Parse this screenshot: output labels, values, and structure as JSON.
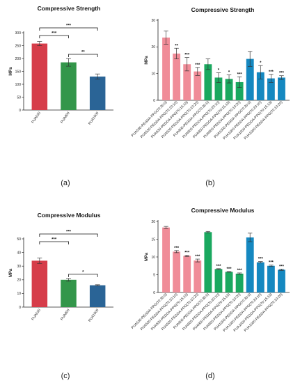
{
  "chart_data": [
    {
      "panel": "a",
      "caption": "(a)",
      "type": "bar",
      "title": "Compressive Strength",
      "ylabel": "MPa",
      "ylim": [
        0,
        300
      ],
      "yticks": [
        0,
        50,
        100,
        150,
        200,
        250,
        300
      ],
      "categories": [
        "PUA530",
        "PUA800",
        "PUA1000"
      ],
      "values": [
        258,
        185,
        130
      ],
      "errors": [
        8,
        15,
        10
      ],
      "colors": [
        "#d63d4a",
        "#33964a",
        "#2a6496"
      ],
      "brackets": [
        {
          "from": 0,
          "to": 2,
          "label": "***",
          "level": 0
        },
        {
          "from": 0,
          "to": 1,
          "label": "***",
          "level": 1
        },
        {
          "from": 1,
          "to": 2,
          "label": "**",
          "level": 2
        }
      ]
    },
    {
      "panel": "b",
      "caption": "(b)",
      "type": "bar",
      "title": "Compressive Strength",
      "ylabel": "MPa",
      "ylim": [
        0,
        30
      ],
      "yticks": [
        0,
        10,
        20,
        30
      ],
      "categories": [
        "PUA530-PEGDA-PPG(70:30:0)",
        "PUA530-PEGDA-PPG(70:20:10)",
        "PUA530-PEGDA-PPG(70:15:15)",
        "PUA530-PEGDA-PPG(70:10:20)",
        "PUA800-PEGDA-PPG(70:30:0)",
        "PUA800-PEGDA-PPG(70:20:10)",
        "PUA800-PEGDA-PPG(70:15:15)",
        "PUA800-PEGDA-PPG(70:10:20)",
        "PUA1000-PEGDA-PPG(70:30:0)",
        "PUA1000-PEGDA-PPG(70:20:10)",
        "PUA1000-PEGDA-PPG(70:15:15)",
        "PUA1000-PEGDA-PPG(70:10:20)"
      ],
      "values": [
        23.5,
        17.5,
        13.5,
        10.8,
        13.5,
        8.5,
        8.0,
        6.8,
        15.5,
        10.5,
        8.2,
        8.5
      ],
      "errors": [
        2.5,
        2.0,
        2.5,
        1.5,
        2.0,
        1.8,
        1.5,
        2.0,
        2.8,
        2.5,
        1.5,
        0.7
      ],
      "labels": [
        "",
        "**",
        "***",
        "***",
        "",
        "*",
        "*",
        "***",
        "",
        "*",
        "***",
        "***"
      ],
      "colors": [
        "#f08c98",
        "#f08c98",
        "#f08c98",
        "#f08c98",
        "#1aa85f",
        "#1aa85f",
        "#1aa85f",
        "#1aa85f",
        "#1588c0",
        "#1588c0",
        "#1588c0",
        "#1588c0"
      ]
    },
    {
      "panel": "c",
      "caption": "(c)",
      "type": "bar",
      "title": "Compressive Modulus",
      "ylabel": "MPa",
      "ylim": [
        0,
        50
      ],
      "yticks": [
        0,
        10,
        20,
        30,
        40,
        50
      ],
      "categories": [
        "PUA530",
        "PUA800",
        "PUA1000"
      ],
      "values": [
        34,
        20,
        16
      ],
      "errors": [
        2,
        1,
        0.4
      ],
      "colors": [
        "#d63d4a",
        "#33964a",
        "#2a6496"
      ],
      "brackets": [
        {
          "from": 0,
          "to": 2,
          "label": "***",
          "level": 0
        },
        {
          "from": 0,
          "to": 1,
          "label": "***",
          "level": 1
        },
        {
          "from": 1,
          "to": 2,
          "label": "*",
          "level": 2
        }
      ]
    },
    {
      "panel": "d",
      "caption": "(d)",
      "type": "bar",
      "title": "Compressive Modulus",
      "ylabel": "MPa",
      "ylim": [
        0,
        20
      ],
      "yticks": [
        0,
        5,
        10,
        15,
        20
      ],
      "categories": [
        "PUA530-PEGDA-PPG(70:30:0)",
        "PUA530-PEGDA-PPG(70:20:10)",
        "PUA530-PEGDA-PPG(70:15:15)",
        "PUA530-PEGDA-PPG(70:10:20)",
        "PUA800-PEGDA-PPG(70:30:0)",
        "PUA800-PEGDA-PPG(70:20:10)",
        "PUA800-PEGDA-PPG(70:15:15)",
        "PUA800-PEGDA-PPG(70:10:20)",
        "PUA1000-PEGDA-PPG(70:30:0)",
        "PUA1000-PEGDA-PPG(70:20:10)",
        "PUA1000-PEGDA-PPG(70:15:15)",
        "PUA1000-PEGDA-PPG(70:10:20)"
      ],
      "values": [
        18.3,
        11.5,
        10.3,
        9.0,
        17.0,
        6.6,
        5.8,
        5.3,
        15.5,
        8.5,
        7.5,
        6.4
      ],
      "errors": [
        0.3,
        0.3,
        0.2,
        0.4,
        0.2,
        0.1,
        0.1,
        0.2,
        1.2,
        0.2,
        0.2,
        0.2
      ],
      "labels": [
        "",
        "***",
        "***",
        "***",
        "",
        "***",
        "***",
        "***",
        "",
        "***",
        "***",
        "***"
      ],
      "colors": [
        "#f08c98",
        "#f08c98",
        "#f08c98",
        "#f08c98",
        "#1aa85f",
        "#1aa85f",
        "#1aa85f",
        "#1aa85f",
        "#1588c0",
        "#1588c0",
        "#1588c0",
        "#1588c0"
      ]
    }
  ]
}
